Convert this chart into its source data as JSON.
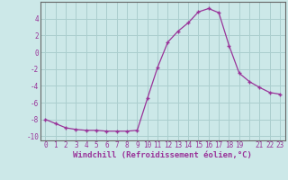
{
  "x": [
    0,
    1,
    2,
    3,
    4,
    5,
    6,
    7,
    8,
    9,
    10,
    11,
    12,
    13,
    14,
    15,
    16,
    17,
    18,
    19,
    20,
    21,
    22,
    23
  ],
  "y": [
    -8.0,
    -8.5,
    -9.0,
    -9.2,
    -9.3,
    -9.3,
    -9.4,
    -9.4,
    -9.4,
    -9.3,
    -5.5,
    -1.8,
    1.2,
    2.5,
    3.5,
    4.8,
    5.2,
    4.7,
    0.8,
    -2.5,
    -3.5,
    -4.2,
    -4.8,
    -5.0
  ],
  "title": "",
  "xlabel": "Windchill (Refroidissement éolien,°C)",
  "ylabel": "",
  "xlim": [
    -0.5,
    23.5
  ],
  "ylim": [
    -10.5,
    6.0
  ],
  "yticks": [
    -10,
    -8,
    -6,
    -4,
    -2,
    0,
    2,
    4
  ],
  "xtick_labels": [
    "0",
    "1",
    "2",
    "3",
    "4",
    "5",
    "6",
    "7",
    "8",
    "9",
    "10",
    "11",
    "12",
    "13",
    "14",
    "15",
    "16",
    "17",
    "18",
    "19",
    " ",
    "21",
    "22",
    "23"
  ],
  "line_color": "#993399",
  "marker": "+",
  "bg_color": "#cce8e8",
  "grid_color": "#aacece",
  "font_color": "#993399",
  "tick_fontsize": 5.5,
  "xlabel_fontsize": 6.5
}
